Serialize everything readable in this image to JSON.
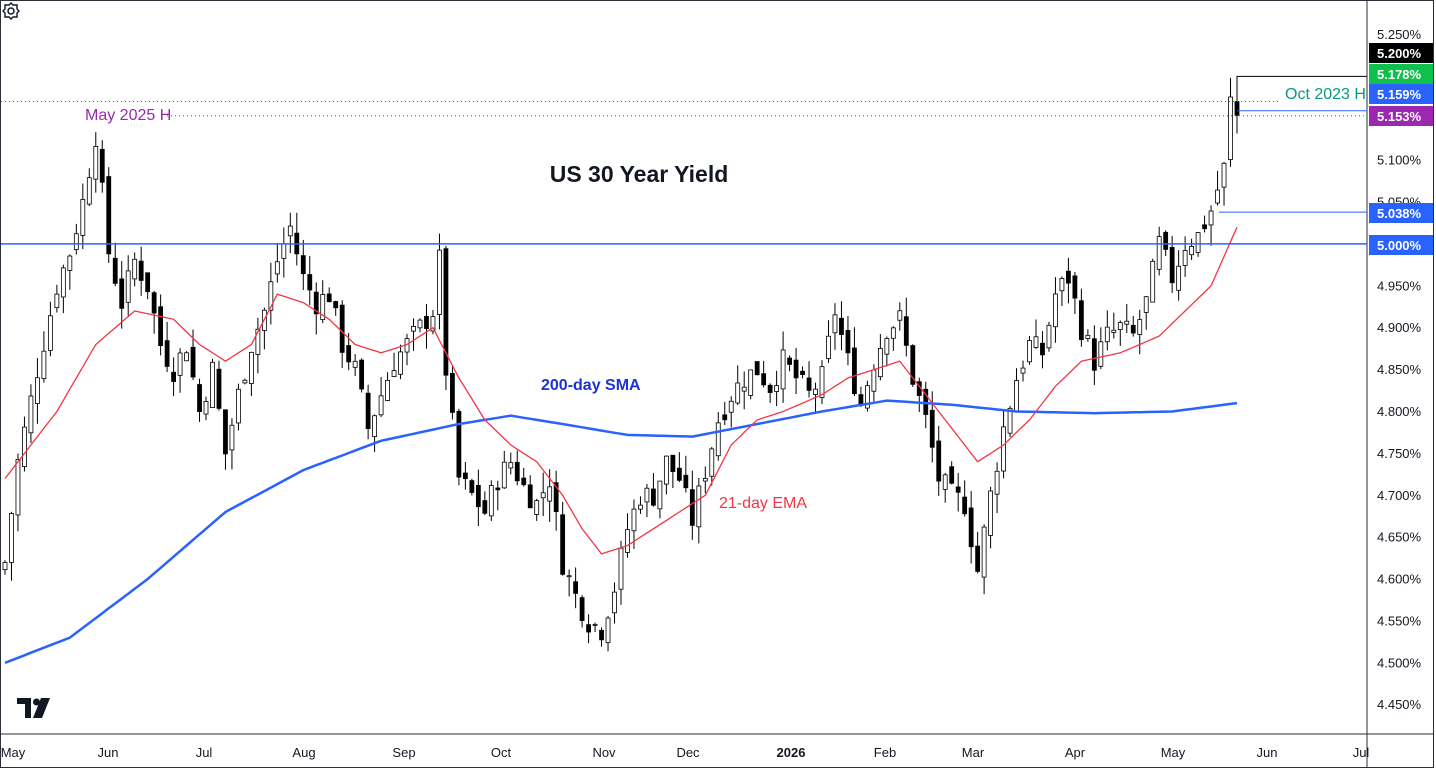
{
  "chart_data": {
    "type": "candlestick",
    "title": "US 30 Year Yield",
    "ylim": [
      4.415,
      5.29
    ],
    "y_ticks": [
      "4.450%",
      "4.500%",
      "4.550%",
      "4.600%",
      "4.650%",
      "4.700%",
      "4.750%",
      "4.800%",
      "4.850%",
      "4.900%",
      "4.950%",
      "5.000%",
      "5.050%",
      "5.100%",
      "5.150%",
      "5.200%",
      "5.250%"
    ],
    "x_ticks": [
      "May",
      "Jun",
      "Jul",
      "Aug",
      "Sep",
      "Oct",
      "Nov",
      "Dec",
      "2026",
      "Feb",
      "Mar",
      "Apr",
      "May",
      "Jun",
      "Jul"
    ],
    "bold_x_tick": "2026",
    "close_path": [
      [
        0,
        4.62
      ],
      [
        2,
        4.74
      ],
      [
        5,
        4.85
      ],
      [
        8,
        4.95
      ],
      [
        10,
        4.99
      ],
      [
        12,
        5.05
      ],
      [
        14,
        5.13
      ],
      [
        16,
        4.99
      ],
      [
        18,
        4.93
      ],
      [
        20,
        4.98
      ],
      [
        22,
        4.95
      ],
      [
        24,
        4.88
      ],
      [
        26,
        4.85
      ],
      [
        28,
        4.88
      ],
      [
        30,
        4.8
      ],
      [
        32,
        4.85
      ],
      [
        34,
        4.75
      ],
      [
        36,
        4.82
      ],
      [
        38,
        4.88
      ],
      [
        40,
        4.92
      ],
      [
        42,
        4.98
      ],
      [
        44,
        5.02
      ],
      [
        46,
        4.96
      ],
      [
        48,
        4.93
      ],
      [
        50,
        4.94
      ],
      [
        52,
        4.88
      ],
      [
        54,
        4.85
      ],
      [
        56,
        4.78
      ],
      [
        58,
        4.82
      ],
      [
        60,
        4.86
      ],
      [
        62,
        4.88
      ],
      [
        64,
        4.9
      ],
      [
        66,
        4.92
      ],
      [
        67,
        4.98
      ],
      [
        68,
        4.85
      ],
      [
        70,
        4.72
      ],
      [
        72,
        4.7
      ],
      [
        74,
        4.68
      ],
      [
        76,
        4.72
      ],
      [
        78,
        4.74
      ],
      [
        80,
        4.71
      ],
      [
        82,
        4.69
      ],
      [
        84,
        4.72
      ],
      [
        86,
        4.62
      ],
      [
        88,
        4.58
      ],
      [
        90,
        4.55
      ],
      [
        92,
        4.54
      ],
      [
        94,
        4.59
      ],
      [
        96,
        4.66
      ],
      [
        98,
        4.7
      ],
      [
        100,
        4.7
      ],
      [
        102,
        4.74
      ],
      [
        104,
        4.72
      ],
      [
        106,
        4.67
      ],
      [
        108,
        4.73
      ],
      [
        110,
        4.79
      ],
      [
        112,
        4.82
      ],
      [
        114,
        4.84
      ],
      [
        116,
        4.85
      ],
      [
        118,
        4.83
      ],
      [
        120,
        4.86
      ],
      [
        122,
        4.84
      ],
      [
        124,
        4.82
      ],
      [
        126,
        4.84
      ],
      [
        128,
        4.92
      ],
      [
        130,
        4.86
      ],
      [
        132,
        4.81
      ],
      [
        134,
        4.86
      ],
      [
        136,
        4.9
      ],
      [
        138,
        4.91
      ],
      [
        140,
        4.84
      ],
      [
        142,
        4.79
      ],
      [
        144,
        4.72
      ],
      [
        146,
        4.7
      ],
      [
        148,
        4.69
      ],
      [
        150,
        4.61
      ],
      [
        152,
        4.7
      ],
      [
        154,
        4.78
      ],
      [
        156,
        4.84
      ],
      [
        158,
        4.88
      ],
      [
        160,
        4.87
      ],
      [
        162,
        4.94
      ],
      [
        164,
        4.96
      ],
      [
        166,
        4.9
      ],
      [
        168,
        4.86
      ],
      [
        170,
        4.89
      ],
      [
        172,
        4.9
      ],
      [
        174,
        4.89
      ],
      [
        176,
        4.93
      ],
      [
        178,
        5.0
      ],
      [
        180,
        4.96
      ],
      [
        182,
        5.0
      ],
      [
        184,
        5.01
      ],
      [
        186,
        5.04
      ],
      [
        188,
        5.09
      ],
      [
        189,
        5.17
      ],
      [
        190,
        5.153
      ]
    ],
    "series": [
      {
        "name": "200-day SMA",
        "color": "#2962ff",
        "values": [
          [
            0,
            4.5
          ],
          [
            10,
            4.53
          ],
          [
            22,
            4.6
          ],
          [
            34,
            4.68
          ],
          [
            46,
            4.73
          ],
          [
            58,
            4.765
          ],
          [
            70,
            4.785
          ],
          [
            78,
            4.795
          ],
          [
            86,
            4.785
          ],
          [
            96,
            4.772
          ],
          [
            106,
            4.77
          ],
          [
            116,
            4.785
          ],
          [
            126,
            4.8
          ],
          [
            136,
            4.813
          ],
          [
            146,
            4.808
          ],
          [
            156,
            4.8
          ],
          [
            168,
            4.798
          ],
          [
            180,
            4.8
          ],
          [
            190,
            4.81
          ]
        ]
      },
      {
        "name": "21-day EMA",
        "color": "#f23645",
        "values": [
          [
            0,
            4.72
          ],
          [
            8,
            4.8
          ],
          [
            14,
            4.88
          ],
          [
            20,
            4.92
          ],
          [
            26,
            4.91
          ],
          [
            30,
            4.88
          ],
          [
            34,
            4.86
          ],
          [
            38,
            4.88
          ],
          [
            42,
            4.94
          ],
          [
            46,
            4.93
          ],
          [
            50,
            4.91
          ],
          [
            54,
            4.88
          ],
          [
            58,
            4.87
          ],
          [
            62,
            4.88
          ],
          [
            66,
            4.9
          ],
          [
            70,
            4.84
          ],
          [
            74,
            4.79
          ],
          [
            78,
            4.76
          ],
          [
            82,
            4.74
          ],
          [
            86,
            4.7
          ],
          [
            89,
            4.66
          ],
          [
            92,
            4.63
          ],
          [
            96,
            4.64
          ],
          [
            100,
            4.66
          ],
          [
            104,
            4.68
          ],
          [
            108,
            4.7
          ],
          [
            112,
            4.76
          ],
          [
            116,
            4.79
          ],
          [
            120,
            4.8
          ],
          [
            126,
            4.82
          ],
          [
            130,
            4.84
          ],
          [
            134,
            4.85
          ],
          [
            138,
            4.86
          ],
          [
            142,
            4.82
          ],
          [
            146,
            4.78
          ],
          [
            150,
            4.74
          ],
          [
            154,
            4.76
          ],
          [
            158,
            4.79
          ],
          [
            162,
            4.83
          ],
          [
            166,
            4.86
          ],
          [
            172,
            4.87
          ],
          [
            178,
            4.89
          ],
          [
            182,
            4.92
          ],
          [
            186,
            4.95
          ],
          [
            190,
            5.02
          ]
        ]
      }
    ],
    "levels": [
      {
        "value": 5.0,
        "label": "5.000%",
        "style": "solid",
        "color": "#2962ff"
      },
      {
        "value": 5.17,
        "label": "Oct 2023 H",
        "style": "dotted",
        "color": "#089981"
      },
      {
        "value": 5.153,
        "label": "May 2025 H",
        "style": "dotted",
        "color": "#9c27b0"
      },
      {
        "value": 5.038,
        "label": "5.038%",
        "style": "solid",
        "color": "#2962ff"
      },
      {
        "value": 5.159,
        "label": "5.159%",
        "style": "solid",
        "color": "#2962ff"
      }
    ],
    "price_badges": [
      {
        "value": 5.2,
        "label": "5.200%",
        "bg": "#000000"
      },
      {
        "value": 5.178,
        "label": "5.178%",
        "bg": "#0ec04c"
      },
      {
        "value": 5.159,
        "label": "5.159%",
        "bg": "#2962ff"
      },
      {
        "value": 5.153,
        "label": "5.153%",
        "bg": "#9c27b0"
      },
      {
        "value": 5.038,
        "label": "5.038%",
        "bg": "#2962ff"
      },
      {
        "value": 5.0,
        "label": "5.000%",
        "bg": "#2962ff"
      }
    ],
    "annotations": {
      "sma_label": "200-day SMA",
      "ema_label": "21-day EMA",
      "oct_label": "Oct 2023 H",
      "may_label": "May 2025 H"
    }
  },
  "icons": {
    "logo": "tradingview-logo-icon",
    "settings": "gear-icon"
  }
}
